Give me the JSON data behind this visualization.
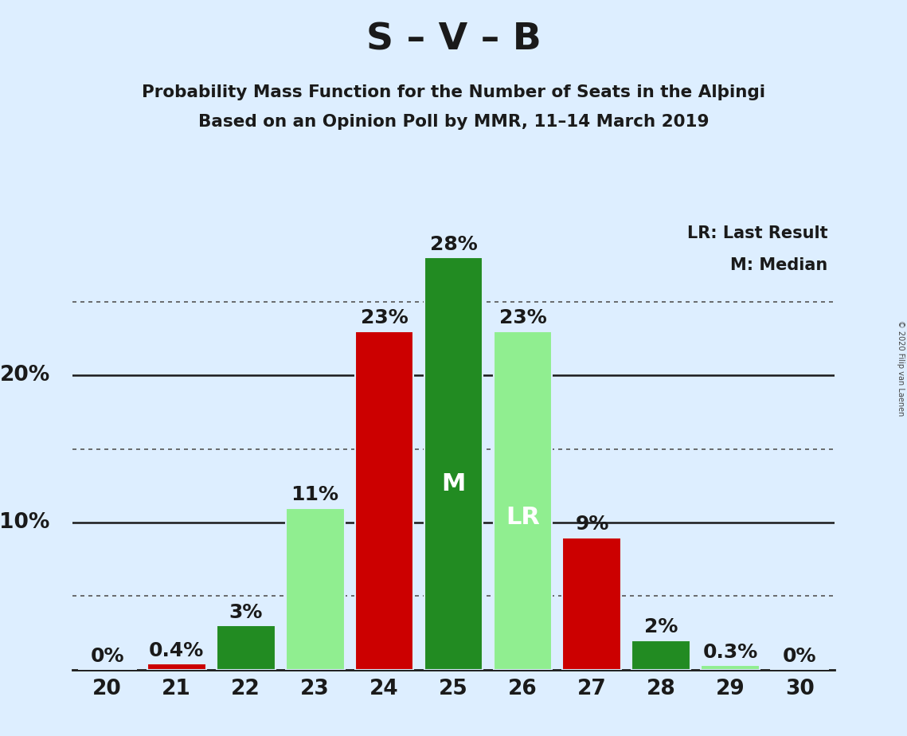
{
  "title": "S – V – B",
  "subtitle1": "Probability Mass Function for the Number of Seats in the Alþingi",
  "subtitle2": "Based on an Opinion Poll by MMR, 11–14 March 2019",
  "copyright": "© 2020 Filip van Laenen",
  "legend_lr": "LR: Last Result",
  "legend_m": "M: Median",
  "seats": [
    20,
    21,
    22,
    23,
    24,
    25,
    26,
    27,
    28,
    29,
    30
  ],
  "pmf_values": [
    0.0,
    0.4,
    3.0,
    11.0,
    23.0,
    28.0,
    23.0,
    9.0,
    2.0,
    0.3,
    0.0
  ],
  "bar_colors": [
    "#90EE90",
    "#cc0000",
    "#228B22",
    "#90EE90",
    "#cc0000",
    "#228B22",
    "#90EE90",
    "#cc0000",
    "#228B22",
    "#90EE90",
    "#90EE90"
  ],
  "label_texts": [
    "0%",
    "0.4%",
    "3%",
    "11%",
    "23%",
    "28%",
    "23%",
    "9%",
    "2%",
    "0.3%",
    "0%"
  ],
  "bar_labels": [
    "",
    "",
    "",
    "",
    "",
    "M",
    "LR",
    "",
    "",
    "",
    ""
  ],
  "median_seat": 25,
  "lr_seat": 26,
  "ylim": [
    0,
    31
  ],
  "solid_lines": [
    10.0,
    20.0
  ],
  "dotted_lines": [
    5.0,
    15.0,
    25.0
  ],
  "background_color": "#ddeeff",
  "title_fontsize": 34,
  "subtitle_fontsize": 15.5,
  "axis_tick_fontsize": 19,
  "bar_label_fontsize": 18,
  "inside_label_fontsize": 22,
  "legend_fontsize": 15,
  "copyright_fontsize": 7
}
